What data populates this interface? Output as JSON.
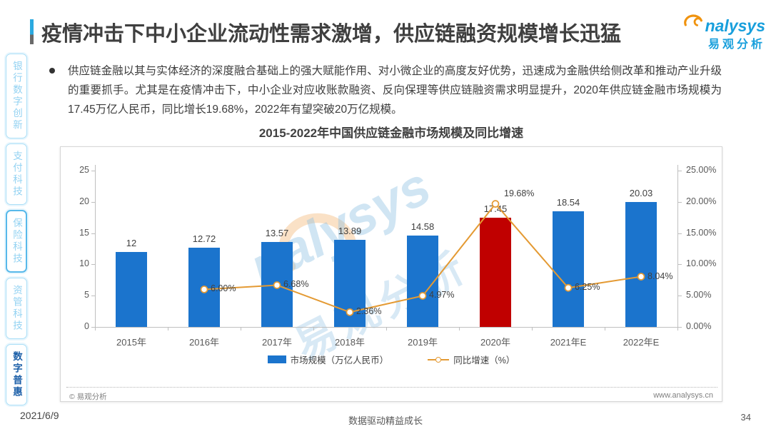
{
  "page": {
    "date": "2021/6/9",
    "slogan": "数据驱动精益成长",
    "page_number": "34"
  },
  "header": {
    "title": "疫情冲击下中小企业流动性需求激增，供应链融资规模增长迅猛",
    "logo": {
      "brand_en": "nalysys",
      "brand_cn": "易观分析"
    }
  },
  "sidebar": {
    "items": [
      {
        "label": "银行数字创新"
      },
      {
        "label": "支付科技"
      },
      {
        "label": "保险科技"
      },
      {
        "label": "资管科技"
      },
      {
        "label": "数字普惠"
      }
    ]
  },
  "body": {
    "bullet_text": "供应链金融以其与实体经济的深度融合基础上的强大赋能作用、对小微企业的高度友好优势，迅速成为金融供给侧改革和推动产业升级的重要抓手。尤其是在疫情冲击下，中小企业对应收账款融资、反向保理等供应链融资需求明显提升，2020年供应链金融市场规模为17.45万亿人民币，同比增长19.68%，2022年有望突破20万亿规模。"
  },
  "card_footer": {
    "left": "© 易观分析",
    "right": "www.analysys.cn"
  },
  "watermark": {
    "text_en": "nalysys",
    "text_cn": "易观分析"
  },
  "chart_data": {
    "type": "bar",
    "subtype": "bar+line combo, dual axis",
    "title": "2015-2022年中国供应链金融市场规模及同比增速",
    "categories": [
      "2015年",
      "2016年",
      "2017年",
      "2018年",
      "2019年",
      "2020年",
      "2021年E",
      "2022年E"
    ],
    "series": [
      {
        "name": "市场规模（万亿人民币）",
        "type": "bar",
        "axis": "left",
        "values": [
          12,
          12.72,
          13.57,
          13.89,
          14.58,
          17.45,
          18.54,
          20.03
        ],
        "labels": [
          "12",
          "12.72",
          "13.57",
          "13.89",
          "14.58",
          "17.45",
          "18.54",
          "20.03"
        ]
      },
      {
        "name": "同比增速（%）",
        "type": "line",
        "axis": "right",
        "values": [
          null,
          6.0,
          6.68,
          2.36,
          4.97,
          19.68,
          6.25,
          8.04
        ],
        "labels": [
          "",
          "6.00%",
          "6.68%",
          "2.36%",
          "4.97%",
          "19.68%",
          "6.25%",
          "8.04%"
        ]
      }
    ],
    "left_axis": {
      "min": 0,
      "max": 25,
      "ticks": [
        "0",
        "5",
        "10",
        "15",
        "20",
        "25"
      ]
    },
    "right_axis": {
      "min": 0,
      "max": 25,
      "ticks": [
        "0.00%",
        "5.00%",
        "10.00%",
        "15.00%",
        "20.00%",
        "25.00%"
      ]
    },
    "colors": {
      "bar": "#1b74cd",
      "bar_highlight": "#c00000",
      "line": "#e49a33"
    },
    "highlight_index": 5,
    "legend_position": "bottom",
    "grid": false
  }
}
